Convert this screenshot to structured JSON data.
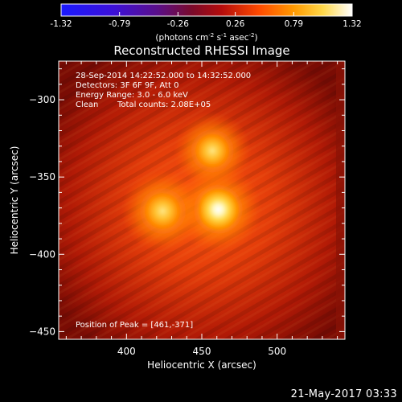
{
  "colorbar": {
    "ticks": [
      "-1.32",
      "-0.79",
      "-0.26",
      "0.26",
      "0.79",
      "1.32"
    ],
    "tick_values": [
      -1.32,
      -0.79,
      -0.26,
      0.26,
      0.79,
      1.32
    ],
    "units_main": "(photons cm",
    "units_sup1": "-2",
    "units_s": " s",
    "units_sup2": "-1",
    "units_asec": " asec",
    "units_sup3": "-2",
    "units_close": ")"
  },
  "image": {
    "title": "Reconstructed RHESSI Image",
    "info_time": "28-Sep-2014 14:22:52.000 to 14:32:52.000",
    "info_detectors": "Detectors: 3F 6F 9F, Att 0",
    "info_energy": "Energy Range: 3.0 - 6.0 keV",
    "info_clean": "Clean",
    "info_counts": "Total counts: 2.08E+05",
    "peak_text": "Position of Peak = [461,-371]"
  },
  "footer": {
    "date": "21-May-2017 03:33"
  },
  "chart_data": {
    "type": "heatmap",
    "title": "Reconstructed RHESSI Image",
    "xlabel": "Heliocentric X (arcsec)",
    "ylabel": "Heliocentric Y (arcsec)",
    "xlim": [
      355,
      545
    ],
    "ylim": [
      -455,
      -275
    ],
    "xticks": [
      400,
      450,
      500
    ],
    "yticks": [
      -300,
      -350,
      -400,
      -450
    ],
    "clim": [
      -1.32,
      1.32
    ],
    "colormap": "red-temperature",
    "sources": [
      {
        "x": 461,
        "y": -371,
        "peak": 1.32
      },
      {
        "x": 424,
        "y": -372,
        "peak": 1.18
      },
      {
        "x": 457,
        "y": -333,
        "peak": 1.08
      }
    ],
    "peak_position": [
      461,
      -371
    ]
  }
}
